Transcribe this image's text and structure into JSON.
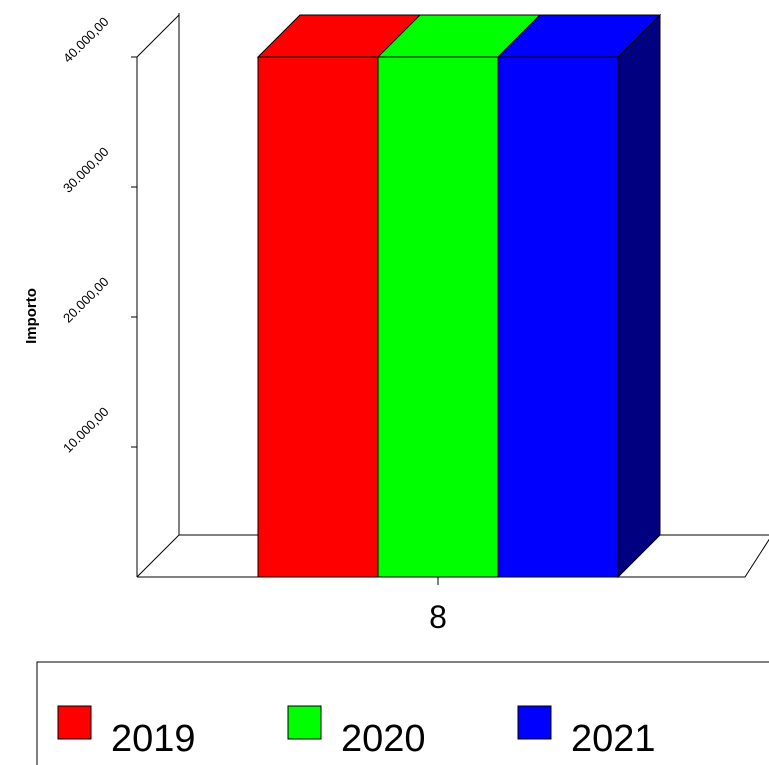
{
  "chart_data": {
    "type": "bar",
    "categories": [
      "8"
    ],
    "series": [
      {
        "name": "2019",
        "values": [
          40000
        ],
        "color": "#ff0000",
        "top_color": "#ff0000",
        "side_color": "#000080"
      },
      {
        "name": "2020",
        "values": [
          40000
        ],
        "color": "#00ff00",
        "top_color": "#00ff00",
        "side_color": "#000080"
      },
      {
        "name": "2021",
        "values": [
          40000
        ],
        "color": "#0000ff",
        "top_color": "#0000ff",
        "side_color": "#000080"
      }
    ],
    "ylabel": "Importo",
    "xlabel": "",
    "ylim": [
      0,
      40000
    ],
    "yticks": [
      10000,
      20000,
      30000,
      40000
    ],
    "ytick_labels": [
      "10.000,00",
      "20.000,00",
      "30.000,00",
      "40.000,00"
    ],
    "grid": false,
    "legend_position": "bottom",
    "style": "3d"
  }
}
